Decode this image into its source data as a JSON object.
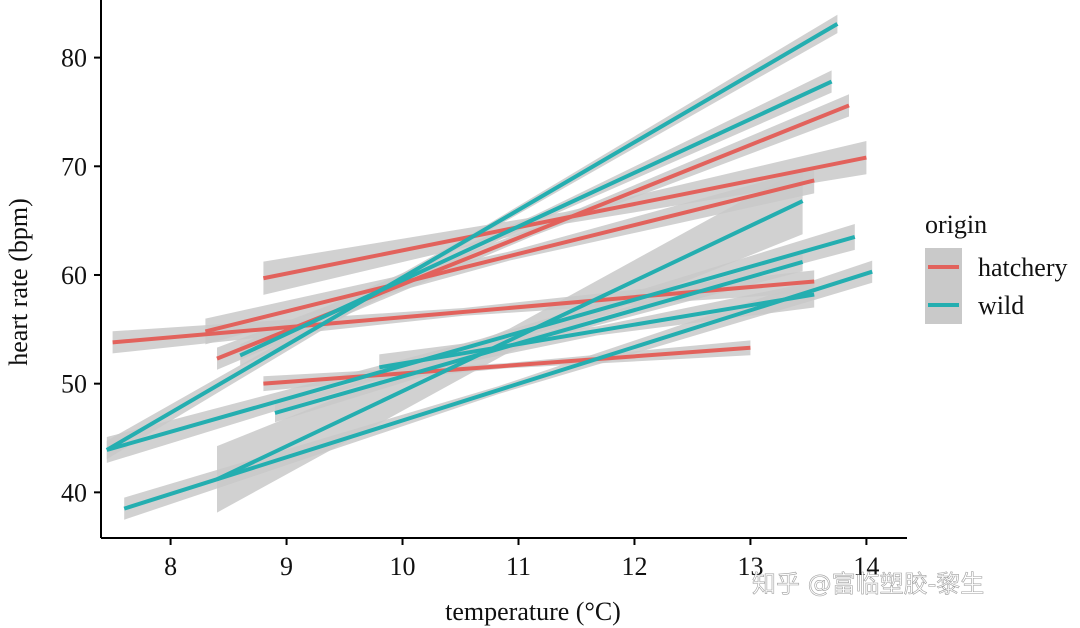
{
  "chart_data": {
    "type": "line",
    "title": "",
    "xlabel": "temperature (°C)",
    "ylabel": "heart rate (bpm)",
    "xlim": [
      7.4,
      14.35
    ],
    "ylim": [
      35.8,
      85.3
    ],
    "x_ticks": [
      8,
      9,
      10,
      11,
      12,
      13,
      14
    ],
    "y_ticks": [
      40,
      50,
      60,
      70,
      80
    ],
    "grid": false,
    "legend_title": "origin",
    "legend_position": "right",
    "colors": {
      "hatchery": "#e2625c",
      "wild": "#24aeb0",
      "ribbon": "#c9c9c9"
    },
    "series": [
      {
        "name": "hatchery",
        "x": [
          7.5,
          13.55
        ],
        "y": [
          53.8,
          59.4
        ],
        "ci": 0.6
      },
      {
        "name": "hatchery",
        "x": [
          8.3,
          13.55
        ],
        "y": [
          54.8,
          68.7
        ],
        "ci": 0.7
      },
      {
        "name": "hatchery",
        "x": [
          8.4,
          13.85
        ],
        "y": [
          52.3,
          75.6
        ],
        "ci": 0.6
      },
      {
        "name": "hatchery",
        "x": [
          8.8,
          14.0
        ],
        "y": [
          59.7,
          70.8
        ],
        "ci": 0.9
      },
      {
        "name": "hatchery",
        "x": [
          8.8,
          13.0
        ],
        "y": [
          50.0,
          53.3
        ],
        "ci": 0.4
      },
      {
        "name": "wild",
        "x": [
          7.45,
          13.75
        ],
        "y": [
          43.9,
          83.1
        ],
        "ci": 0.5
      },
      {
        "name": "wild",
        "x": [
          7.45,
          13.9
        ],
        "y": [
          43.9,
          63.5
        ],
        "ci": 0.7
      },
      {
        "name": "wild",
        "x": [
          7.6,
          14.05
        ],
        "y": [
          38.5,
          60.3
        ],
        "ci": 0.6
      },
      {
        "name": "wild",
        "x": [
          8.4,
          13.45
        ],
        "y": [
          41.2,
          66.8
        ],
        "ci": 1.8
      },
      {
        "name": "wild",
        "x": [
          8.6,
          13.7
        ],
        "y": [
          52.6,
          77.8
        ],
        "ci": 0.6
      },
      {
        "name": "wild",
        "x": [
          8.9,
          13.45
        ],
        "y": [
          47.3,
          61.2
        ],
        "ci": 0.5
      },
      {
        "name": "wild",
        "x": [
          9.8,
          13.55
        ],
        "y": [
          51.5,
          58.2
        ],
        "ci": 0.7
      }
    ]
  },
  "legend": {
    "title": "origin",
    "items": [
      {
        "label": "hatchery",
        "color": "#e2625c"
      },
      {
        "label": "wild",
        "color": "#24aeb0"
      }
    ]
  },
  "watermark": "知乎 @富临塑胶-黎生"
}
